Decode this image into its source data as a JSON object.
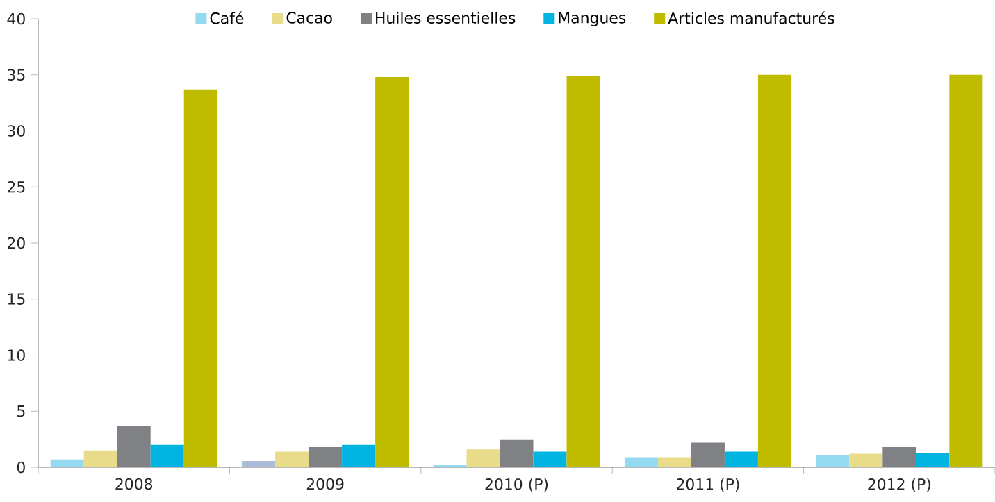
{
  "chart_data": {
    "type": "bar",
    "categories": [
      "2008",
      "2009",
      "2010 (P)",
      "2011 (P)",
      "2012 (P)"
    ],
    "series": [
      {
        "name": "Café",
        "color": "#93d9f0",
        "colors": [
          "#93d9f0",
          "#abbcd9",
          "#93d9f0",
          "#93d9f0",
          "#93d9f0"
        ],
        "values": [
          0.7,
          0.55,
          0.25,
          0.9,
          1.1
        ]
      },
      {
        "name": "Cacao",
        "color": "#e8dc8a",
        "values": [
          1.5,
          1.4,
          1.6,
          0.9,
          1.2
        ]
      },
      {
        "name": "Huiles essentielles",
        "color": "#808184",
        "values": [
          3.7,
          1.8,
          2.5,
          2.2,
          1.8
        ]
      },
      {
        "name": "Mangues",
        "color": "#00b3e0",
        "values": [
          2.0,
          2.0,
          1.4,
          1.4,
          1.3
        ]
      },
      {
        "name": "Articles manufacturés",
        "color": "#bfbc00",
        "values": [
          33.7,
          34.8,
          34.9,
          35.0,
          35.0
        ]
      }
    ],
    "ylim": [
      0,
      40
    ],
    "yticks": [
      0,
      5,
      10,
      15,
      20,
      25,
      30,
      35,
      40
    ],
    "grid": false,
    "legend": "top"
  }
}
